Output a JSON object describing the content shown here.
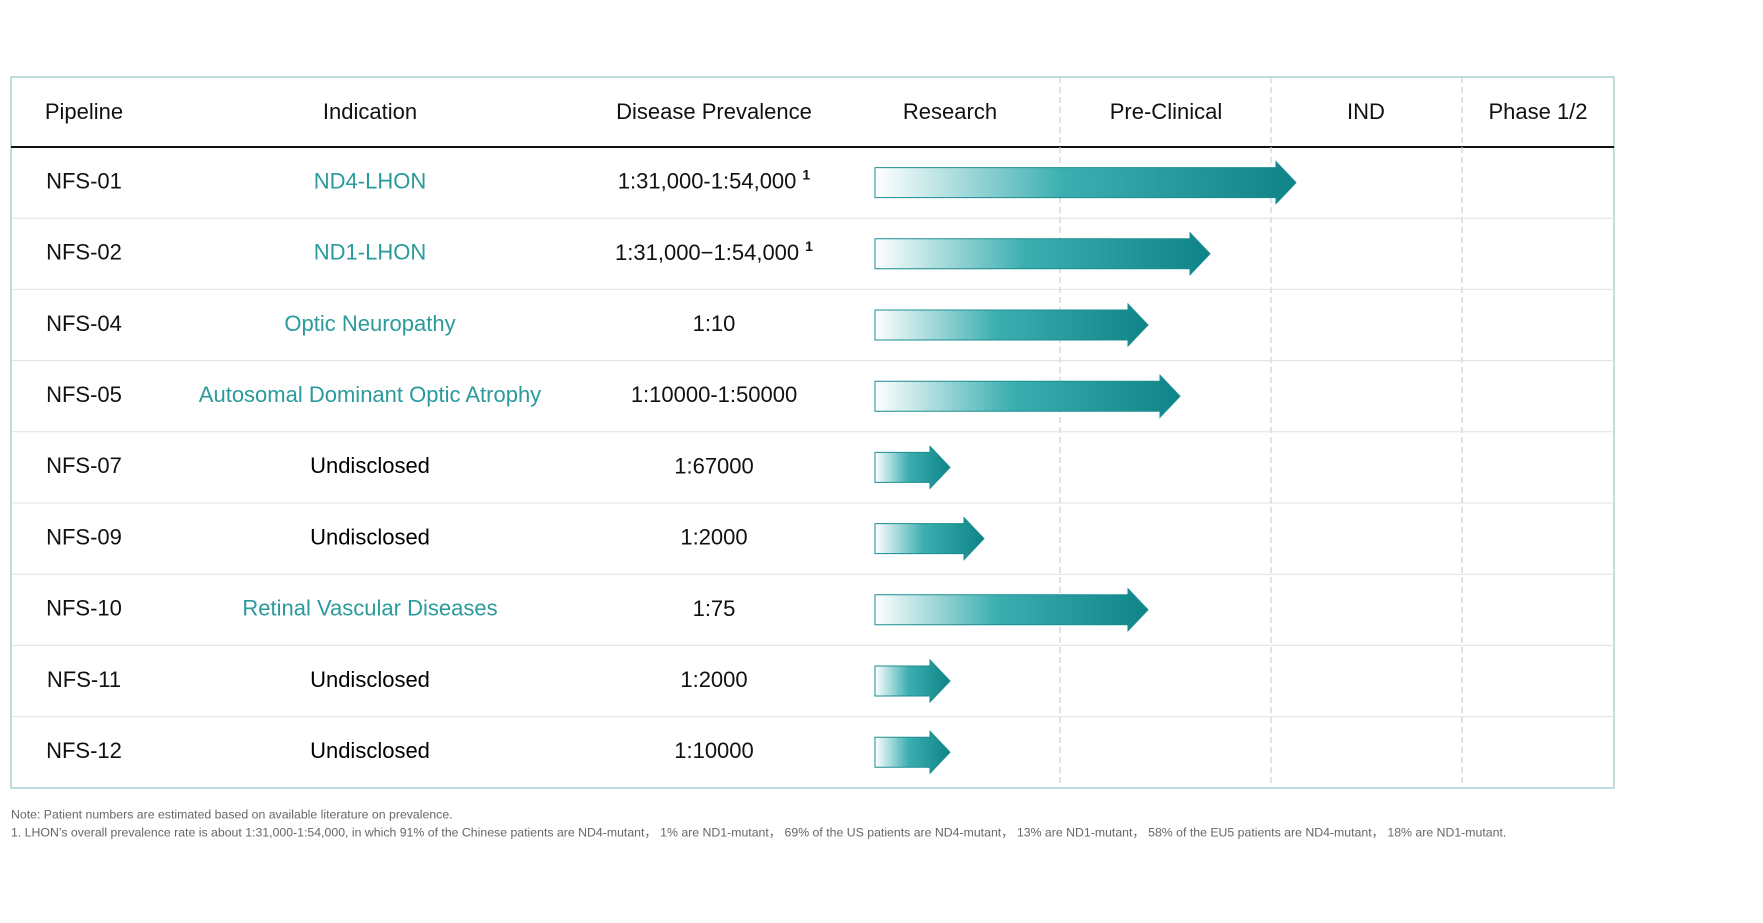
{
  "header": {
    "columns": [
      "Pipeline",
      "Indication",
      "Disease Prevalence",
      "Research",
      "Pre-Clinical",
      "IND",
      "Phase 1/2"
    ]
  },
  "rows": [
    {
      "pipeline": "NFS-01",
      "indication": "ND4-LHON",
      "indication_color": "#2a9a9c",
      "prevalence": "1:31,000-1:54,000",
      "note_ref": "1"
    },
    {
      "pipeline": "NFS-02",
      "indication": "ND1-LHON",
      "indication_color": "#2a9a9c",
      "prevalence": "1:31,000−1:54,000",
      "note_ref": "1"
    },
    {
      "pipeline": "NFS-04",
      "indication": "Optic Neuropathy",
      "indication_color": "#2a9a9c",
      "prevalence": "1:10"
    },
    {
      "pipeline": "NFS-05",
      "indication": "Autosomal Dominant Optic Atrophy",
      "indication_color": "#2a9a9c",
      "prevalence": "1:10000-1:50000"
    },
    {
      "pipeline": "NFS-07",
      "indication": "Undisclosed",
      "indication_color": "#000000",
      "prevalence": "1:67000"
    },
    {
      "pipeline": "NFS-09",
      "indication": "Undisclosed",
      "indication_color": "#000000",
      "prevalence": "1:2000"
    },
    {
      "pipeline": "NFS-10",
      "indication": "Retinal Vascular Diseases",
      "indication_color": "#2a9a9c",
      "prevalence": "1:75"
    },
    {
      "pipeline": "NFS-11",
      "indication": "Undisclosed",
      "indication_color": "#000000",
      "prevalence": "1:2000"
    },
    {
      "pipeline": "NFS-12",
      "indication": "Undisclosed",
      "indication_color": "#000000",
      "prevalence": "1:10000"
    }
  ],
  "notes": [
    "Note:  Patient numbers are estimated based on available literature on prevalence.",
    "1. LHON’s overall prevalence rate is about 1:31,000-1:54,000,  in which 91% of the Chinese patients are ND4-mutant，  1% are ND1-mutant，  69% of the US patients are ND4-mutant，  13% are ND1-mutant，  58% of the EU5 patients are ND4-mutant，  18% are ND1-mutant."
  ]
}
